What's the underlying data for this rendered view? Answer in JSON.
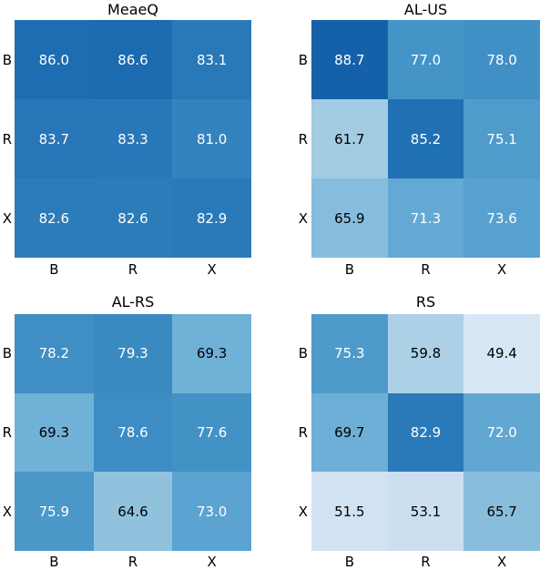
{
  "figure": {
    "background": "#ffffff",
    "text_color": "#000000"
  },
  "chart_data": [
    {
      "type": "heatmap",
      "title": "MeaeQ",
      "row_labels": [
        "B",
        "R",
        "X"
      ],
      "col_labels": [
        "B",
        "R",
        "X"
      ],
      "values": [
        [
          86.0,
          86.6,
          83.1
        ],
        [
          83.7,
          83.3,
          81.0
        ],
        [
          82.6,
          82.6,
          82.9
        ]
      ],
      "colormap": "Blues",
      "vmin": 40,
      "vmax": 100,
      "annotated": true,
      "cell_text_format": ".1f",
      "legend": "none"
    },
    {
      "type": "heatmap",
      "title": "AL-US",
      "row_labels": [
        "B",
        "R",
        "X"
      ],
      "col_labels": [
        "B",
        "R",
        "X"
      ],
      "values": [
        [
          88.7,
          77.0,
          78.0
        ],
        [
          61.7,
          85.2,
          75.1
        ],
        [
          65.9,
          71.3,
          73.6
        ]
      ],
      "colormap": "Blues",
      "vmin": 40,
      "vmax": 100,
      "annotated": true,
      "cell_text_format": ".1f",
      "legend": "none"
    },
    {
      "type": "heatmap",
      "title": "AL-RS",
      "row_labels": [
        "B",
        "R",
        "X"
      ],
      "col_labels": [
        "B",
        "R",
        "X"
      ],
      "values": [
        [
          78.2,
          79.3,
          69.3
        ],
        [
          69.3,
          78.6,
          77.6
        ],
        [
          75.9,
          64.6,
          73.0
        ]
      ],
      "colormap": "Blues",
      "vmin": 40,
      "vmax": 100,
      "annotated": true,
      "cell_text_format": ".1f",
      "legend": "none"
    },
    {
      "type": "heatmap",
      "title": "RS",
      "row_labels": [
        "B",
        "R",
        "X"
      ],
      "col_labels": [
        "B",
        "R",
        "X"
      ],
      "values": [
        [
          75.3,
          59.8,
          49.4
        ],
        [
          69.7,
          82.9,
          72.0
        ],
        [
          51.5,
          53.1,
          65.7
        ]
      ],
      "colormap": "Blues",
      "vmin": 40,
      "vmax": 100,
      "annotated": true,
      "cell_text_format": ".1f",
      "legend": "none"
    }
  ],
  "colormap_stops": {
    "Blues": [
      [
        0.0,
        "#f7fbff"
      ],
      [
        0.125,
        "#deebf7"
      ],
      [
        0.25,
        "#c6dbef"
      ],
      [
        0.375,
        "#9ecae1"
      ],
      [
        0.5,
        "#6baed6"
      ],
      [
        0.625,
        "#4292c6"
      ],
      [
        0.75,
        "#2171b5"
      ],
      [
        0.875,
        "#08519c"
      ],
      [
        1.0,
        "#08306b"
      ]
    ]
  },
  "text_rule": {
    "white_above_t": 0.51,
    "white": "#ffffff",
    "black": "#000000"
  }
}
